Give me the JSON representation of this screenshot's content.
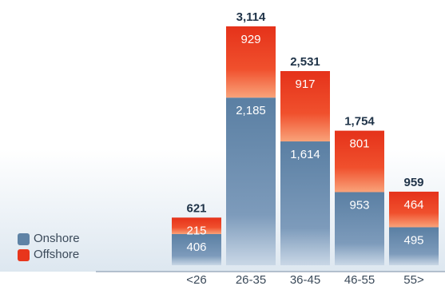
{
  "chart_data": {
    "type": "bar",
    "stacked": true,
    "categories": [
      "<26",
      "26-35",
      "36-45",
      "46-55",
      "55>"
    ],
    "series": [
      {
        "name": "Onshore",
        "values": [
          406,
          2185,
          1614,
          953,
          495
        ],
        "labels": [
          "406",
          "2,185",
          "1,614",
          "953",
          "495"
        ],
        "color": "#5f83a6"
      },
      {
        "name": "Offshore",
        "values": [
          215,
          929,
          917,
          801,
          464
        ],
        "labels": [
          "215",
          "929",
          "917",
          "801",
          "464"
        ],
        "color": "#e8361c"
      }
    ],
    "totals": [
      621,
      3114,
      2531,
      1754,
      959
    ],
    "total_labels": [
      "621",
      "3,114",
      "2,531",
      "1,754",
      "959"
    ],
    "ylim": [
      0,
      3114
    ],
    "grid": false,
    "legend_position": "bottom-left"
  }
}
